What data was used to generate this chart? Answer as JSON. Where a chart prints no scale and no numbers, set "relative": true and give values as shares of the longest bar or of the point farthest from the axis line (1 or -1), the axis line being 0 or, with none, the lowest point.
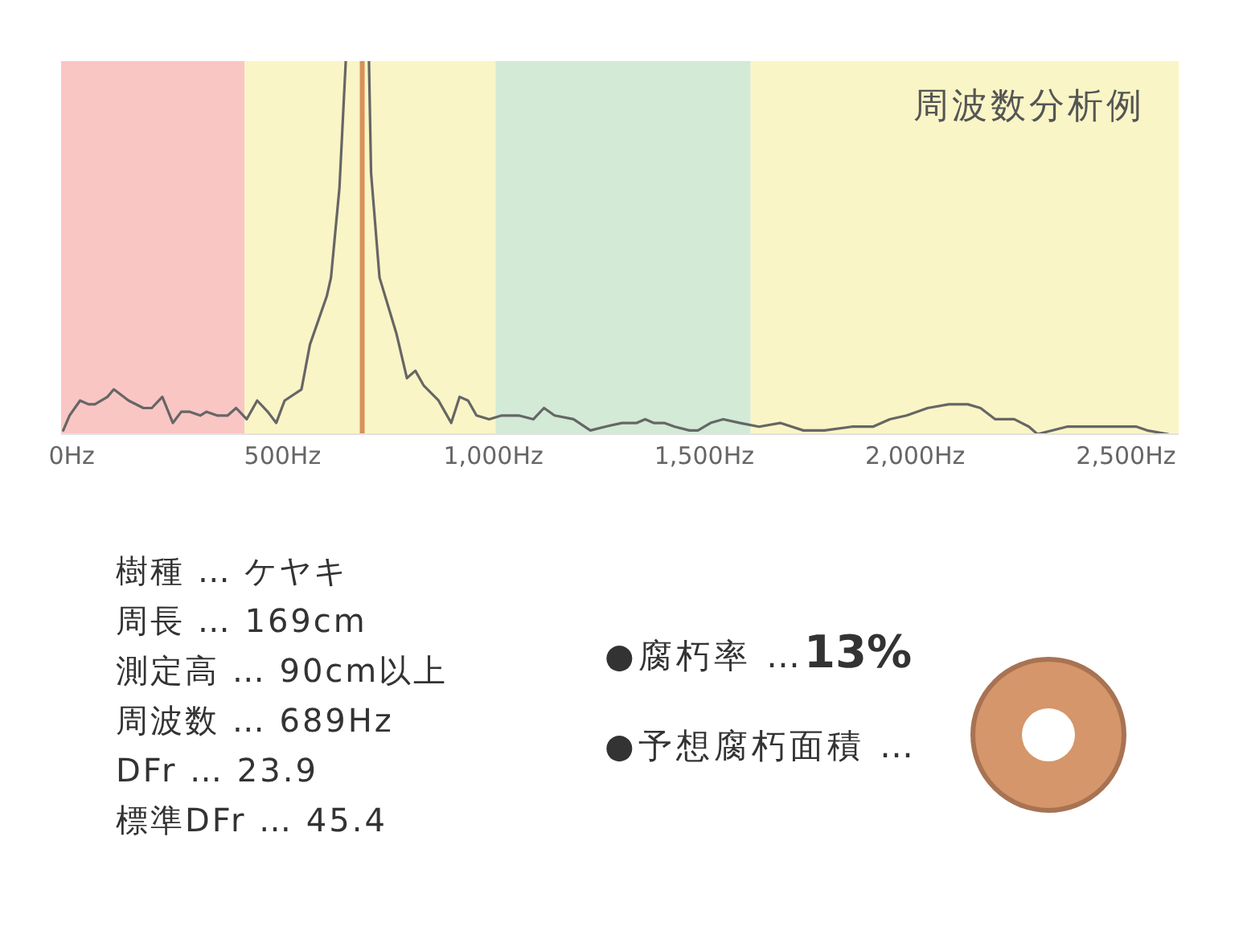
{
  "chart_data": {
    "type": "line",
    "title": "周波数分析例",
    "relative": true,
    "x": [
      -20,
      -5,
      20,
      40,
      55,
      85,
      100,
      135,
      170,
      190,
      215,
      240,
      260,
      280,
      305,
      320,
      345,
      370,
      390,
      415,
      440,
      465,
      485,
      505,
      545,
      565,
      605,
      615,
      635,
      650,
      689,
      705,
      710,
      730,
      770,
      795,
      815,
      835,
      870,
      900,
      920,
      940,
      960,
      990,
      1020,
      1060,
      1095,
      1120,
      1145,
      1190,
      1230,
      1265,
      1305,
      1340,
      1360,
      1380,
      1405,
      1430,
      1465,
      1485,
      1515,
      1545,
      1585,
      1630,
      1680,
      1735,
      1785,
      1850,
      1900,
      1940,
      1980,
      2030,
      2080,
      2125,
      2155,
      2190,
      2235,
      2270,
      2290,
      2360,
      2425,
      2525,
      2550,
      2600
    ],
    "series": [
      {
        "color": "#666666",
        "values": [
          0.01,
          0.05,
          0.09,
          0.08,
          0.08,
          0.1,
          0.12,
          0.09,
          0.07,
          0.07,
          0.1,
          0.03,
          0.06,
          0.06,
          0.05,
          0.06,
          0.05,
          0.05,
          0.07,
          0.04,
          0.09,
          0.06,
          0.03,
          0.09,
          0.12,
          0.24,
          0.37,
          0.42,
          0.66,
          1,
          null,
          1,
          0.7,
          0.42,
          0.27,
          0.15,
          0.17,
          0.13,
          0.09,
          0.03,
          0.1,
          0.09,
          0.05,
          0.04,
          0.05,
          0.05,
          0.04,
          0.07,
          0.05,
          0.04,
          0.01,
          0.02,
          0.03,
          0.03,
          0.04,
          0.03,
          0.03,
          0.02,
          0.01,
          0.01,
          0.03,
          0.04,
          0.03,
          0.02,
          0.03,
          0.01,
          0.01,
          0.02,
          0.02,
          0.04,
          0.05,
          0.07,
          0.08,
          0.08,
          0.07,
          0.04,
          0.04,
          0.02,
          0,
          0.02,
          0.02,
          0.02,
          0.01,
          0
        ]
      }
    ],
    "xlim": [
      -25,
      2625
    ],
    "xticks": [
      {
        "value": 0,
        "label": "0Hz"
      },
      {
        "value": 500,
        "label": "500Hz"
      },
      {
        "value": 1000,
        "label": "1,000Hz"
      },
      {
        "value": 1500,
        "label": "1,500Hz"
      },
      {
        "value": 2000,
        "label": "2,000Hz"
      },
      {
        "value": 2500,
        "label": "2,500Hz"
      }
    ],
    "bands": [
      {
        "axis": "x",
        "from": -25,
        "to": 410,
        "color": "#f9c6c4"
      },
      {
        "axis": "x",
        "from": 410,
        "to": 1005,
        "color": "#faf5c6"
      },
      {
        "axis": "x",
        "from": 1005,
        "to": 1610,
        "color": "#d2ead6"
      },
      {
        "axis": "x",
        "from": 1610,
        "to": 2625,
        "color": "#faf5c6"
      }
    ],
    "ref_lines": [
      {
        "axis": "x",
        "value": 689,
        "color": "#d9905c"
      }
    ],
    "annotations": [
      "樹種 … ケヤキ",
      "周長 … 169cm",
      "測定高 … 90cm以上",
      "周波数 … 689Hz",
      "DFr … 23.9",
      "標準DFr … 45.4",
      "●腐朽率 …13%",
      "●予想腐朽面積 …"
    ]
  }
}
